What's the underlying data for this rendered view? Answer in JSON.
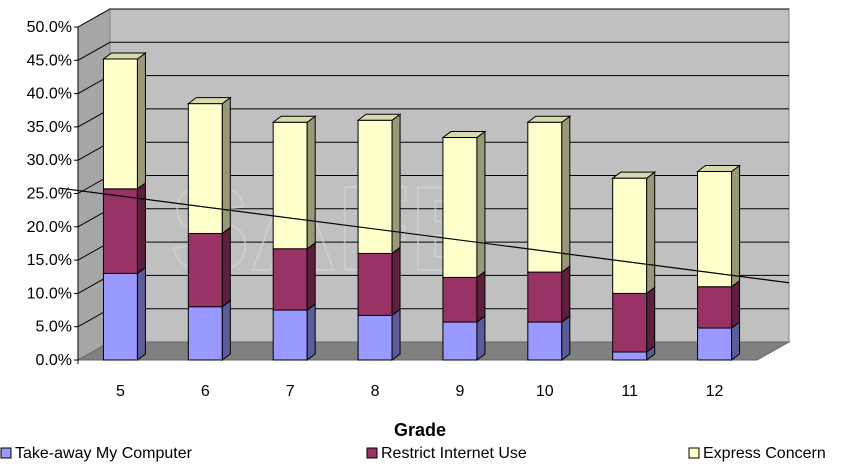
{
  "chart_data": {
    "type": "bar",
    "stacked": true,
    "three_d": true,
    "title": "",
    "xlabel": "Grade",
    "ylabel": "",
    "ylim": [
      0,
      50
    ],
    "y_tick_labels": [
      "0.0%",
      "5.0%",
      "10.0%",
      "15.0%",
      "20.0%",
      "25.0%",
      "30.0%",
      "35.0%",
      "40.0%",
      "45.0%",
      "50.0%"
    ],
    "categories": [
      "5",
      "6",
      "7",
      "8",
      "9",
      "10",
      "11",
      "12"
    ],
    "series": [
      {
        "name": "Take-away My Computer",
        "color": "#9999ff",
        "values": [
          13.0,
          8.0,
          7.5,
          6.7,
          5.7,
          5.7,
          1.2,
          4.8
        ]
      },
      {
        "name": "Restrict Internet Use",
        "color": "#993366",
        "values": [
          12.7,
          11.0,
          9.2,
          9.3,
          6.7,
          7.5,
          8.8,
          6.2
        ]
      },
      {
        "name": "Express Concern",
        "color": "#ffffcc",
        "values": [
          19.5,
          19.5,
          19.0,
          20.0,
          21.0,
          22.5,
          17.3,
          17.3
        ]
      }
    ],
    "trendline": {
      "color": "#000000",
      "start_value": 25.8,
      "end_value": 11.6
    },
    "grid": true,
    "legend_position": "bottom"
  }
}
